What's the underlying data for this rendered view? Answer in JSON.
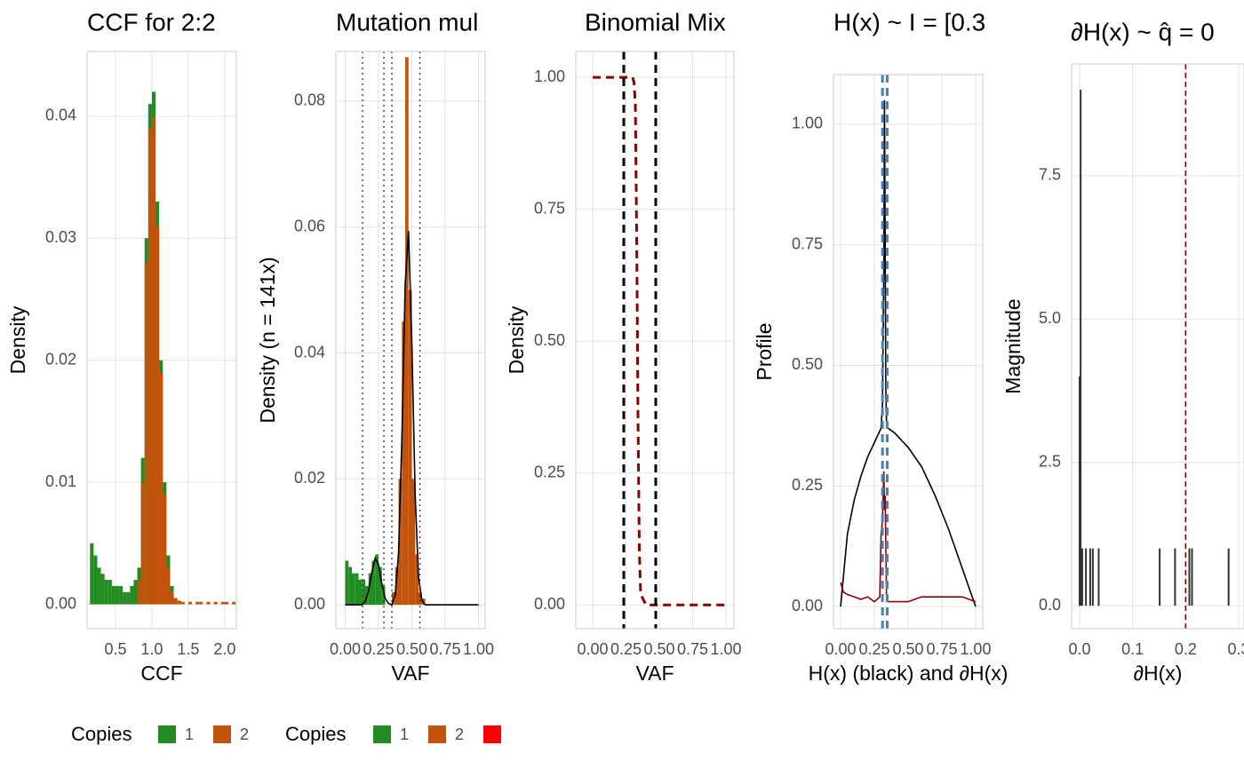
{
  "chart_data": [
    {
      "type": "histogram",
      "title": "CCF for 2:2",
      "xlabel": "CCF",
      "ylabel": "Density",
      "bins": [
        0.15,
        0.2,
        0.25,
        0.3,
        0.35,
        0.4,
        0.45,
        0.5,
        0.55,
        0.6,
        0.65,
        0.7,
        0.75,
        0.8,
        0.85,
        0.9,
        0.95,
        1.0,
        1.05,
        1.1,
        1.15,
        1.2,
        1.25,
        1.3,
        1.35,
        1.4,
        1.45,
        1.5,
        1.55,
        1.6,
        1.65,
        1.7,
        1.75,
        1.8,
        1.85,
        1.9,
        1.95,
        2.0,
        2.05,
        2.1,
        2.15
      ],
      "series": [
        {
          "name": "1",
          "color": "#228b22",
          "values": [
            0.005,
            0.004,
            0.003,
            0.0025,
            0.002,
            0.002,
            0.0015,
            0.0015,
            0.0015,
            0.001,
            0.001,
            0.0015,
            0.002,
            0.003,
            0.012,
            0.03,
            0.041,
            0.042,
            0.033,
            0.02,
            0.01,
            0.004,
            0.0015,
            0.0005,
            0,
            0,
            0,
            0,
            0,
            0,
            0,
            0,
            0,
            0,
            0,
            0,
            0,
            0,
            0,
            0
          ]
        },
        {
          "name": "2",
          "color": "#c1530c",
          "values": [
            0,
            0,
            0,
            0,
            0,
            0,
            0,
            0,
            0,
            0,
            0,
            0,
            0,
            0.002,
            0.01,
            0.028,
            0.039,
            0.04,
            0.031,
            0.019,
            0.009,
            0.003,
            0.001,
            0.0005,
            0.0003,
            0.0002,
            0,
            0.0002,
            0,
            0.0002,
            0.0002,
            0,
            0.0002,
            0,
            0.0002,
            0,
            0.0002,
            0.0002,
            0,
            0.0002
          ]
        }
      ],
      "xlim": [
        0.11,
        2.16
      ],
      "ylim": [
        -0.002,
        0.0453
      ],
      "xticks": [
        0.5,
        {
          "value": 1,
          "label": "1.0"
        },
        1.5,
        {
          "value": 2,
          "label": "2.0"
        }
      ],
      "yticks": [
        {
          "value": 0,
          "label": "0.00"
        },
        0.01,
        0.02,
        0.03,
        0.04
      ],
      "grid": true,
      "legend_title": "Copies"
    },
    {
      "type": "histogram",
      "title": "Mutation mul",
      "xlabel": "VAF",
      "ylabel": "Density (n = 141x)",
      "bins": [
        0,
        0.025,
        0.05,
        0.075,
        0.1,
        0.125,
        0.15,
        0.175,
        0.2,
        0.225,
        0.25,
        0.275,
        0.3,
        0.325,
        0.35,
        0.375,
        0.4,
        0.425,
        0.45,
        0.475,
        0.5,
        0.525,
        0.55,
        0.575,
        0.6,
        0.625,
        0.65,
        0.675,
        0.7,
        0.725,
        0.75,
        0.775,
        0.8,
        0.825,
        0.85,
        0.875,
        0.9,
        0.925,
        0.95,
        0.975,
        1
      ],
      "series": [
        {
          "name": "1",
          "color": "#228b22",
          "values": [
            0.007,
            0.006,
            0.005,
            0.005,
            0.004,
            0.004,
            0.003,
            0.005,
            0.007,
            0.008,
            0.006,
            0.003,
            0,
            0,
            0,
            0,
            0,
            0,
            0,
            0,
            0,
            0,
            0,
            0,
            0,
            0,
            0,
            0,
            0,
            0,
            0,
            0,
            0,
            0,
            0,
            0,
            0,
            0,
            0,
            0
          ]
        },
        {
          "name": "2",
          "color": "#c1530c",
          "values": [
            0,
            0,
            0,
            0,
            0,
            0,
            0,
            0,
            0,
            0,
            0,
            0,
            0,
            0,
            0.002,
            0.006,
            0.02,
            0.045,
            0.087,
            0.05,
            0.02,
            0.008,
            0.002,
            0.001,
            0,
            0,
            0,
            0,
            0,
            0,
            0,
            0,
            0,
            0,
            0,
            0,
            0,
            0,
            0,
            0
          ]
        },
        {
          "name": null,
          "color": "#ff0000",
          "values": [
            null,
            null,
            null,
            null,
            null,
            null,
            null,
            null,
            null,
            null,
            null,
            null,
            null,
            null,
            null,
            null,
            null,
            null,
            null,
            null,
            null,
            null,
            null,
            null,
            null,
            null,
            null,
            null,
            null,
            null,
            null,
            null,
            null,
            null,
            null,
            null,
            null,
            null,
            null,
            null
          ]
        }
      ],
      "curve": {
        "color": "#000000",
        "x": [
          0,
          0.025,
          0.05,
          0.075,
          0.1,
          0.125,
          0.15,
          0.175,
          0.2,
          0.225,
          0.25,
          0.275,
          0.3,
          0.325,
          0.35,
          0.375,
          0.4,
          0.425,
          0.45,
          0.475,
          0.5,
          0.525,
          0.55,
          0.575,
          0.6,
          0.625,
          0.65,
          0.675,
          0.7,
          0.725,
          0.75,
          0.775,
          0.8,
          0.825,
          0.85,
          0.875,
          0.9,
          0.925,
          0.95,
          0.975,
          1
        ],
        "y": [
          0,
          0,
          0,
          0,
          0,
          0,
          0.0005,
          0.0022,
          0.0052,
          0.0074,
          0.0064,
          0.0033,
          0.001,
          0.0002,
          0,
          0.0015,
          0.0081,
          0.0262,
          0.0509,
          0.0594,
          0.0416,
          0.0174,
          0.0044,
          0.0007,
          0,
          0,
          0,
          0,
          0,
          0,
          0,
          0,
          0,
          0,
          0,
          0,
          0,
          0,
          0,
          0,
          0
        ]
      },
      "vlines": [
        0.13,
        0.29,
        0.35,
        0.56
      ],
      "vline_style": "dotted",
      "vline_color": "#333333",
      "xlim": [
        -0.07,
        1.05
      ],
      "ylim": [
        -0.0038,
        0.0879
      ],
      "xticks": [
        {
          "value": 0,
          "label": "0.00"
        },
        0.25,
        {
          "value": 0.5,
          "label": "0.50"
        },
        0.75,
        {
          "value": 1,
          "label": "1.00"
        }
      ],
      "yticks": [
        {
          "value": 0,
          "label": "0.00"
        },
        0.02,
        0.04,
        0.06,
        0.08
      ],
      "grid": true,
      "legend_title": "Copies"
    },
    {
      "type": "line",
      "title": "Binomial Mix",
      "xlabel": "VAF",
      "ylabel": "Density",
      "series": [
        {
          "color": "#8b0000",
          "dash": true,
          "x": [
            0,
            0.1,
            0.2,
            0.3,
            0.31,
            0.32,
            0.33,
            0.34,
            0.35,
            0.36,
            0.4,
            0.5,
            0.75,
            1
          ],
          "values": [
            1,
            1,
            1,
            1,
            0.99,
            0.95,
            0.7,
            0.35,
            0.1,
            0.02,
            0,
            0,
            0,
            0
          ]
        }
      ],
      "vlines": [
        0.233,
        0.473
      ],
      "vline_style": "dashed",
      "vline_color": "#000000",
      "xlim": [
        -0.127,
        1.06
      ],
      "ylim": [
        -0.045,
        1.049
      ],
      "xticks": [
        {
          "value": 0,
          "label": "0.00"
        },
        0.25,
        {
          "value": 0.5,
          "label": "0.50"
        },
        0.75,
        {
          "value": 1,
          "label": "1.00"
        }
      ],
      "yticks": [
        {
          "value": 0,
          "label": "0.00"
        },
        0.25,
        {
          "value": 0.5,
          "label": "0.50"
        },
        0.75,
        {
          "value": 1,
          "label": "1.00"
        }
      ],
      "grid": true
    },
    {
      "type": "line",
      "title": "H(x) ~ I = [0.3",
      "xlabel": "H(x) (black) and ∂H(x)",
      "ylabel": "Profile",
      "series": [
        {
          "color": "#000000",
          "dash": false,
          "x": [
            0,
            0.05,
            0.1,
            0.15,
            0.2,
            0.25,
            0.3,
            0.31,
            0.32,
            0.325,
            0.33,
            0.335,
            0.34,
            0.35,
            0.4,
            0.5,
            0.6,
            0.7,
            0.8,
            0.9,
            0.95,
            1
          ],
          "values": [
            0,
            0.15,
            0.22,
            0.27,
            0.31,
            0.34,
            0.37,
            0.42,
            0.7,
            1.05,
            0.75,
            0.45,
            0.38,
            0.37,
            0.36,
            0.33,
            0.29,
            0.23,
            0.16,
            0.08,
            0.04,
            0
          ]
        },
        {
          "color": "#8b0000",
          "dash": false,
          "x": [
            0,
            0.02,
            0.05,
            0.1,
            0.15,
            0.2,
            0.25,
            0.29,
            0.3,
            0.31,
            0.32,
            0.325,
            0.33,
            0.34,
            0.35,
            0.4,
            0.5,
            0.6,
            0.7,
            0.8,
            0.9,
            1
          ],
          "values": [
            0.05,
            0.03,
            0.025,
            0.02,
            0.015,
            0.02,
            0.01,
            0.02,
            0.15,
            0.18,
            0.28,
            0.2,
            0.23,
            0.02,
            0.01,
            0.01,
            0.01,
            0.02,
            0.02,
            0.02,
            0.02,
            0.01
          ]
        }
      ],
      "vlines": [
        0.31,
        0.345
      ],
      "vline_style": "dashed",
      "vline_color": "#4682b4",
      "xlim": [
        -0.053,
        1.053
      ],
      "ylim": [
        -0.046,
        1.103
      ],
      "xticks": [
        {
          "value": 0,
          "label": "0.00"
        },
        0.25,
        {
          "value": 0.5,
          "label": "0.50"
        },
        0.75,
        {
          "value": 1,
          "label": "1.00"
        }
      ],
      "yticks": [
        {
          "value": 0,
          "label": "0.00"
        },
        0.25,
        {
          "value": 0.5,
          "label": "0.50"
        },
        0.75,
        {
          "value": 1,
          "label": "1.00"
        }
      ],
      "grid": true
    },
    {
      "type": "spike",
      "title": "∂H(x) ~  q̂ = 0",
      "xlabel": "∂H(x)",
      "ylabel": "Magnitude",
      "color": "#333333",
      "x": [
        0,
        0.002,
        0.005,
        0.012,
        0.02,
        0.025,
        0.036,
        0.151,
        0.18,
        0.207,
        0.212,
        0.281
      ],
      "values": [
        4,
        9,
        1,
        1,
        1,
        1,
        1,
        1,
        1,
        1,
        1,
        1
      ],
      "vlines": [
        0.2
      ],
      "vline_style": "dashed",
      "vline_color": "#8b0000",
      "xlim": [
        -0.015,
        0.31
      ],
      "ylim": [
        -0.4,
        9.45
      ],
      "xticks": [
        {
          "value": 0,
          "label": "0.0"
        },
        0.1,
        0.2,
        0.3
      ],
      "yticks": [
        {
          "value": 0,
          "label": "0.0"
        },
        2.5,
        {
          "value": 5,
          "label": "5.0"
        },
        7.5
      ],
      "grid": true
    }
  ]
}
